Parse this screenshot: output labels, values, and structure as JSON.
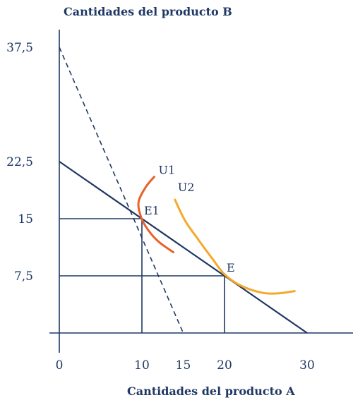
{
  "chart_data": {
    "type": "line",
    "title": "",
    "ylabel": "Cantidades del producto B",
    "xlabel": "Cantidades del producto A",
    "xlim": [
      0,
      30
    ],
    "ylim": [
      0,
      37.5
    ],
    "grid": false,
    "x_ticks": [
      "0",
      "10",
      "15",
      "20",
      "30"
    ],
    "y_ticks": [
      "37,5",
      "22,5",
      "15",
      "7,5"
    ],
    "lines": [
      {
        "id": "budget-original",
        "style": "solid",
        "points": [
          [
            0,
            22.5
          ],
          [
            30,
            0
          ]
        ]
      },
      {
        "id": "budget-new",
        "style": "dashed",
        "points": [
          [
            0,
            37.5
          ],
          [
            15,
            0
          ]
        ]
      }
    ],
    "curves": [
      {
        "name": "U1",
        "color": "#e8622c",
        "points": [
          [
            11.5,
            20.5
          ],
          [
            10.5,
            19.2
          ],
          [
            9.6,
            17.2
          ],
          [
            9.9,
            15.2
          ],
          [
            10.7,
            13.6
          ],
          [
            12,
            12
          ],
          [
            13.8,
            10.6
          ]
        ]
      },
      {
        "name": "U2",
        "color": "#f4a92c",
        "points": [
          [
            14,
            17.5
          ],
          [
            15.2,
            14.8
          ],
          [
            16.8,
            12.3
          ],
          [
            18.5,
            9.8
          ],
          [
            20,
            7.7
          ],
          [
            22,
            6.2
          ],
          [
            24.5,
            5.3
          ],
          [
            26.5,
            5.2
          ],
          [
            28.5,
            5.5
          ]
        ]
      }
    ],
    "points": [
      {
        "name": "E1",
        "x": 10,
        "y": 15
      },
      {
        "name": "E",
        "x": 20,
        "y": 7.5
      }
    ],
    "colors": {
      "axis": "#1f3864",
      "u1": "#e8622c",
      "u2": "#f4a92c"
    }
  }
}
